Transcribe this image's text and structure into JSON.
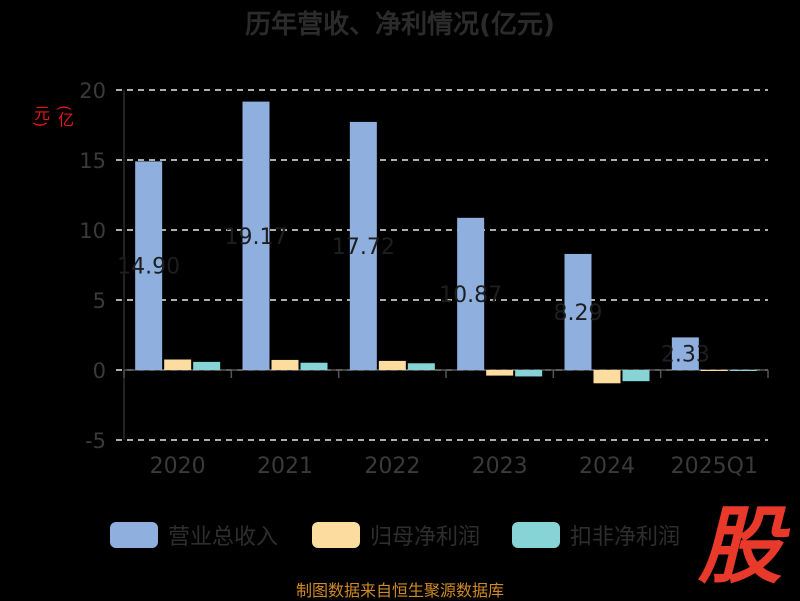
{
  "chart_data": {
    "type": "bar",
    "title": "历年营收、净利情况(亿元)",
    "ylabel": "(亿元)",
    "ylim": [
      -5,
      20
    ],
    "yticks": [
      "-5",
      "0",
      "5",
      "10",
      "15",
      "20"
    ],
    "grid": true,
    "legend_position": "bottom",
    "categories": [
      "2020",
      "2021",
      "2022",
      "2023",
      "2024",
      "2025Q1"
    ],
    "series": [
      {
        "name": "营业总收入",
        "color": "#8fb0df",
        "values": [
          14.9,
          19.17,
          17.72,
          10.87,
          8.29,
          2.33
        ],
        "data_labels": [
          "14.90",
          "19.17",
          "17.72",
          "10.87",
          "8.29",
          "2.33"
        ]
      },
      {
        "name": "归母净利润",
        "color": "#fddca0",
        "values": [
          0.75,
          0.72,
          0.65,
          -0.4,
          -0.95,
          -0.05
        ]
      },
      {
        "name": "扣非净利润",
        "color": "#86d4d6",
        "values": [
          0.58,
          0.52,
          0.48,
          -0.46,
          -0.8,
          -0.03
        ]
      }
    ]
  },
  "source_note": "制图数据来自恒生聚源数据库",
  "logo_text": "股"
}
